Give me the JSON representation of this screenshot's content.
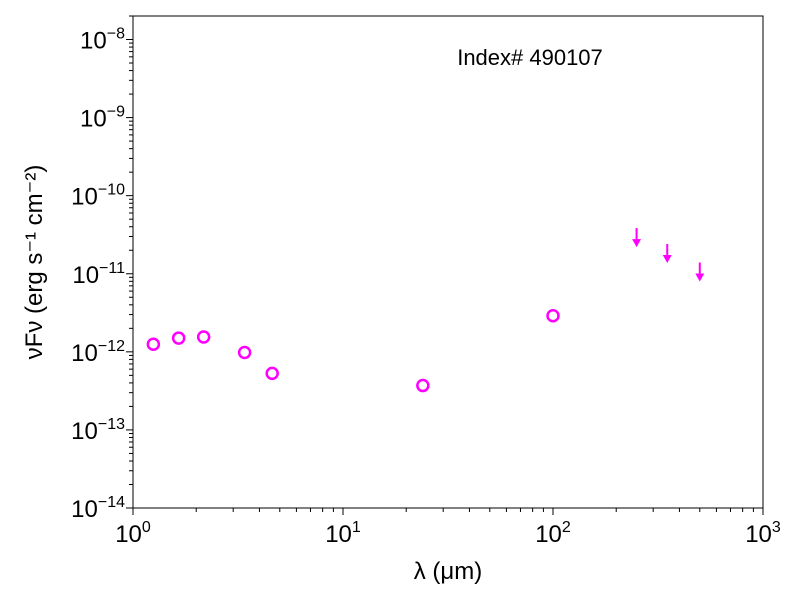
{
  "chart_data": {
    "type": "scatter",
    "xscale": "log",
    "yscale": "log",
    "xlim": [
      1,
      1000
    ],
    "ylim": [
      1e-14,
      2e-08
    ],
    "xlabel": "λ (μm)",
    "ylabel": "νFν (erg s⁻¹ cm⁻²)",
    "annotation": "Index# 490107",
    "x_ticks": [
      {
        "value": 1,
        "base": "10",
        "exp": "0"
      },
      {
        "value": 10,
        "base": "10",
        "exp": "1"
      },
      {
        "value": 100,
        "base": "10",
        "exp": "2"
      },
      {
        "value": 1000,
        "base": "10",
        "exp": "3"
      }
    ],
    "y_ticks": [
      {
        "value": 1e-14,
        "base": "10",
        "exp": "−14"
      },
      {
        "value": 1e-13,
        "base": "10",
        "exp": "−13"
      },
      {
        "value": 1e-12,
        "base": "10",
        "exp": "−12"
      },
      {
        "value": 1e-11,
        "base": "10",
        "exp": "−11"
      },
      {
        "value": 1e-10,
        "base": "10",
        "exp": "−10"
      },
      {
        "value": 1e-09,
        "base": "10",
        "exp": "−9"
      },
      {
        "value": 1e-08,
        "base": "10",
        "exp": "−8"
      }
    ],
    "detections": {
      "marker": "open-circle",
      "color": "#ff00ff",
      "points": [
        {
          "x": 1.25,
          "y": 1.25e-12
        },
        {
          "x": 1.65,
          "y": 1.5e-12
        },
        {
          "x": 2.17,
          "y": 1.55e-12
        },
        {
          "x": 3.4,
          "y": 9.8e-13
        },
        {
          "x": 4.6,
          "y": 5.3e-13
        },
        {
          "x": 24,
          "y": 3.7e-13
        },
        {
          "x": 100,
          "y": 2.9e-12
        }
      ]
    },
    "upper_limits": {
      "marker": "down-arrow",
      "color": "#ff00ff",
      "points": [
        {
          "x": 250,
          "y": 2.4e-11
        },
        {
          "x": 350,
          "y": 1.5e-11
        },
        {
          "x": 500,
          "y": 8.7e-12
        }
      ]
    }
  }
}
